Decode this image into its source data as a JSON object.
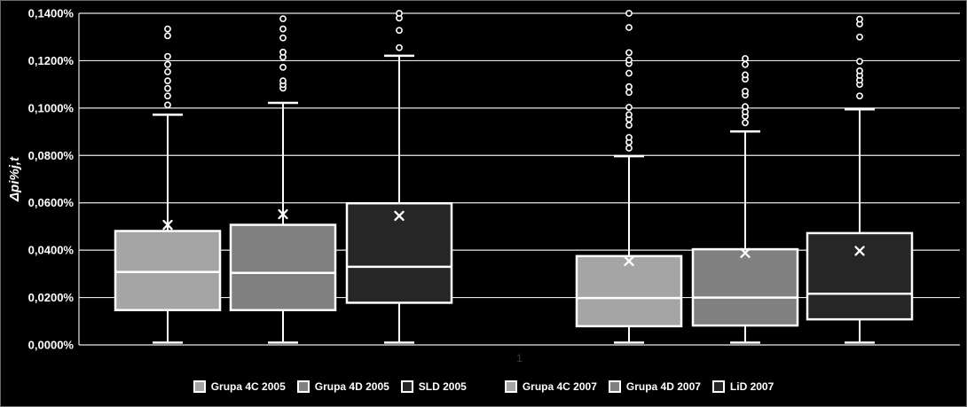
{
  "chart_data": {
    "type": "boxplot",
    "title": "",
    "xlabel": "",
    "ylabel": "Δpi%j,t",
    "x_category_label": "1",
    "units": "percent",
    "ylim": [
      0,
      0.14
    ],
    "y_ticks": [
      0,
      0.02,
      0.04,
      0.06,
      0.08,
      0.1,
      0.12,
      0.14
    ],
    "y_tick_labels": [
      "0,0000%",
      "0,0200%",
      "0,0400%",
      "0,0600%",
      "0,0800%",
      "0,1000%",
      "0,1200%",
      "0,1400%"
    ],
    "grid": true,
    "grid_color": "#e8e8e8",
    "background": "#000000",
    "box_border_color": "#ffffff",
    "mean_marker": "x",
    "legend_position": "bottom",
    "series": [
      {
        "name": "Grupa 4C 2005",
        "color": "#a5a5a5",
        "min": 0.001,
        "q1": 0.0147,
        "median": 0.0308,
        "q3": 0.0481,
        "max": 0.0972,
        "mean": 0.0507,
        "outliers": [
          0.1013,
          0.1051,
          0.1083,
          0.1115,
          0.1153,
          0.1184,
          0.1218,
          0.1305,
          0.1334
        ]
      },
      {
        "name": "Grupa 4D 2005",
        "color": "#808080",
        "min": 0.001,
        "q1": 0.0147,
        "median": 0.0304,
        "q3": 0.0507,
        "max": 0.1022,
        "mean": 0.0552,
        "outliers": [
          0.1084,
          0.1099,
          0.1115,
          0.1172,
          0.1215,
          0.1236,
          0.1296,
          0.1334,
          0.1377
        ]
      },
      {
        "name": "SLD 2005",
        "color": "#262626",
        "min": 0.001,
        "q1": 0.0178,
        "median": 0.033,
        "q3": 0.0598,
        "max": 0.1221,
        "mean": 0.0545,
        "outliers": [
          0.1255,
          0.1328,
          0.138,
          0.14
        ]
      },
      {
        "name": "Grupa 4C 2007",
        "color": "#a5a5a5",
        "min": 0.001,
        "q1": 0.0079,
        "median": 0.0198,
        "q3": 0.0375,
        "max": 0.0797,
        "mean": 0.0354,
        "outliers": [
          0.0831,
          0.0856,
          0.0876,
          0.0928,
          0.0953,
          0.0972,
          0.1003,
          0.1066,
          0.109,
          0.1147,
          0.1188,
          0.1203,
          0.1234,
          0.134,
          0.14
        ]
      },
      {
        "name": "Grupa 4D 2007",
        "color": "#808080",
        "min": 0.001,
        "q1": 0.0082,
        "median": 0.02,
        "q3": 0.0404,
        "max": 0.0901,
        "mean": 0.0388,
        "outliers": [
          0.0938,
          0.0966,
          0.0984,
          0.1006,
          0.1055,
          0.1071,
          0.1122,
          0.114,
          0.1184,
          0.1209
        ]
      },
      {
        "name": "LiD 2007",
        "color": "#262626",
        "min": 0.001,
        "q1": 0.0108,
        "median": 0.0216,
        "q3": 0.0472,
        "max": 0.0995,
        "mean": 0.0397,
        "outliers": [
          0.1051,
          0.11,
          0.1118,
          0.1138,
          0.1157,
          0.1197,
          0.13,
          0.1355,
          0.1375
        ]
      }
    ]
  }
}
